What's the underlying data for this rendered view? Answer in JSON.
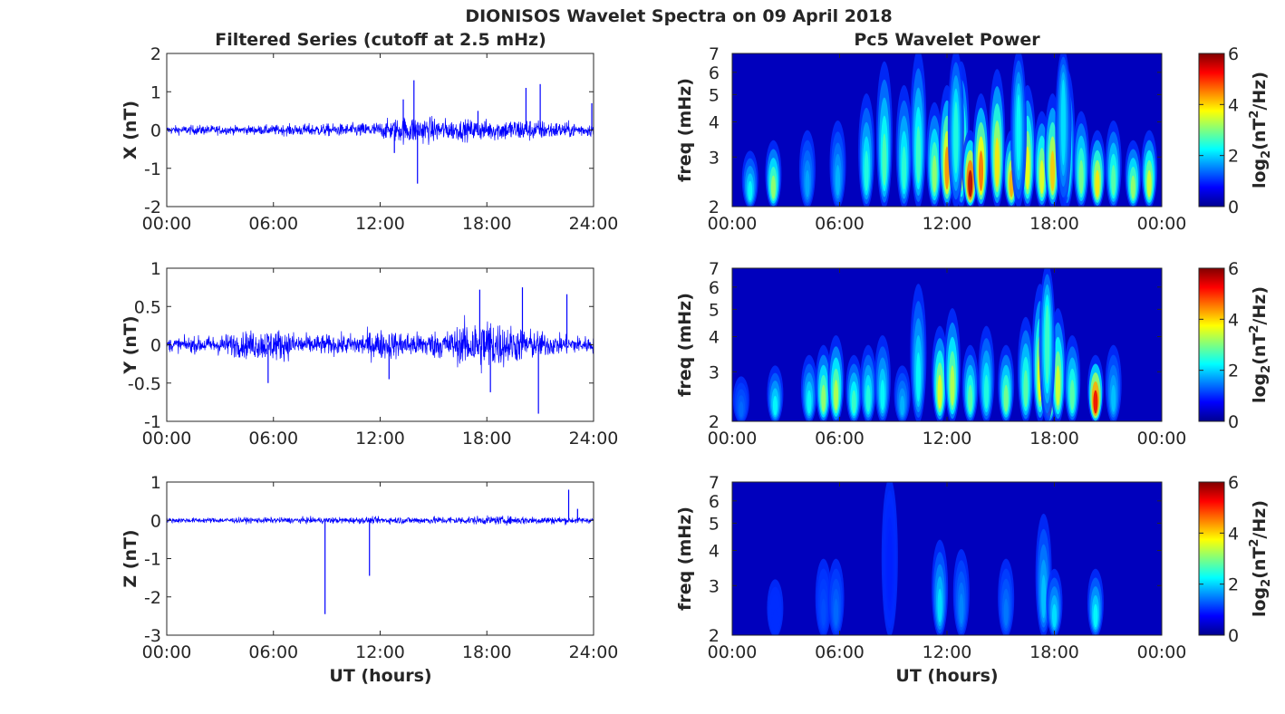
{
  "figure": {
    "title": "DIONISOS Wavelet Spectra on 09 April 2018",
    "left_title": "Filtered Series (cutoff at 2.5 mHz)",
    "right_title": "Pc5 Wavelet Power",
    "xlabel": "UT (hours)"
  },
  "chart_data": [
    {
      "type": "line",
      "component": "X",
      "ylabel": "X (nT)",
      "xlim": [
        0,
        24
      ],
      "ylim": [
        -2,
        2
      ],
      "xticks": [
        "00:00",
        "06:00",
        "12:00",
        "18:00",
        "24:00"
      ],
      "yticks": [
        "2",
        "1",
        "0",
        "-1",
        "-2"
      ],
      "yticks_values": [
        2,
        1,
        0,
        -1,
        -2
      ],
      "color": "#0000ff",
      "noise_envelope": [
        {
          "x": 0,
          "amp": 0.1
        },
        {
          "x": 2,
          "amp": 0.12
        },
        {
          "x": 4,
          "amp": 0.1
        },
        {
          "x": 6,
          "amp": 0.12
        },
        {
          "x": 8,
          "amp": 0.15
        },
        {
          "x": 10,
          "amp": 0.15
        },
        {
          "x": 12,
          "amp": 0.2
        },
        {
          "x": 13,
          "amp": 0.3
        },
        {
          "x": 14,
          "amp": 0.35
        },
        {
          "x": 16,
          "amp": 0.25
        },
        {
          "x": 18,
          "amp": 0.25
        },
        {
          "x": 20,
          "amp": 0.28
        },
        {
          "x": 22,
          "amp": 0.2
        },
        {
          "x": 24,
          "amp": 0.15
        }
      ],
      "spikes": [
        {
          "x": 13.9,
          "y": 1.3
        },
        {
          "x": 14.1,
          "y": -1.4
        },
        {
          "x": 13.3,
          "y": 0.8
        },
        {
          "x": 20.2,
          "y": 1.1
        },
        {
          "x": 21.0,
          "y": 1.2
        },
        {
          "x": 12.8,
          "y": -0.6
        },
        {
          "x": 17.5,
          "y": 0.5
        },
        {
          "x": 23.9,
          "y": 0.7
        }
      ]
    },
    {
      "type": "line",
      "component": "Y",
      "ylabel": "Y (nT)",
      "xlim": [
        0,
        24
      ],
      "ylim": [
        -1,
        1
      ],
      "xticks": [
        "00:00",
        "06:00",
        "12:00",
        "18:00",
        "24:00"
      ],
      "yticks": [
        "1",
        "0.5",
        "0",
        "-0.5",
        "-1"
      ],
      "yticks_values": [
        1,
        0.5,
        0,
        -0.5,
        -1
      ],
      "color": "#0000ff",
      "noise_envelope": [
        {
          "x": 0,
          "amp": 0.08
        },
        {
          "x": 2,
          "amp": 0.1
        },
        {
          "x": 4,
          "amp": 0.15
        },
        {
          "x": 6,
          "amp": 0.2
        },
        {
          "x": 8,
          "amp": 0.12
        },
        {
          "x": 10,
          "amp": 0.12
        },
        {
          "x": 12,
          "amp": 0.18
        },
        {
          "x": 14,
          "amp": 0.15
        },
        {
          "x": 16,
          "amp": 0.18
        },
        {
          "x": 17,
          "amp": 0.3
        },
        {
          "x": 18,
          "amp": 0.35
        },
        {
          "x": 19,
          "amp": 0.25
        },
        {
          "x": 20,
          "amp": 0.2
        },
        {
          "x": 22,
          "amp": 0.12
        },
        {
          "x": 24,
          "amp": 0.1
        }
      ],
      "spikes": [
        {
          "x": 17.6,
          "y": 0.72
        },
        {
          "x": 20.0,
          "y": 0.75
        },
        {
          "x": 20.9,
          "y": -0.9
        },
        {
          "x": 22.5,
          "y": 0.66
        },
        {
          "x": 18.2,
          "y": -0.62
        },
        {
          "x": 5.7,
          "y": -0.5
        },
        {
          "x": 12.5,
          "y": -0.45
        }
      ]
    },
    {
      "type": "line",
      "component": "Z",
      "ylabel": "Z (nT)",
      "xlim": [
        0,
        24
      ],
      "ylim": [
        -3,
        1
      ],
      "xticks": [
        "00:00",
        "06:00",
        "12:00",
        "18:00",
        "24:00"
      ],
      "yticks": [
        "1",
        "0",
        "-1",
        "-2",
        "-3"
      ],
      "yticks_values": [
        1,
        0,
        -1,
        -2,
        -3
      ],
      "color": "#0000ff",
      "noise_envelope": [
        {
          "x": 0,
          "amp": 0.06
        },
        {
          "x": 6,
          "amp": 0.07
        },
        {
          "x": 12,
          "amp": 0.08
        },
        {
          "x": 18,
          "amp": 0.1
        },
        {
          "x": 21,
          "amp": 0.1
        },
        {
          "x": 24,
          "amp": 0.07
        }
      ],
      "spikes": [
        {
          "x": 8.9,
          "y": -2.45
        },
        {
          "x": 11.4,
          "y": -1.45
        },
        {
          "x": 22.6,
          "y": 0.8
        },
        {
          "x": 23.1,
          "y": 0.3
        }
      ]
    },
    {
      "type": "heatmap",
      "component": "X",
      "ylabel": "freq (mHz)",
      "xlim": [
        0,
        24
      ],
      "ylim": [
        2,
        7
      ],
      "yscale": "log",
      "xticks": [
        "00:00",
        "06:00",
        "12:00",
        "18:00",
        "00:00"
      ],
      "yticks": [
        "7",
        "6",
        "5",
        "4",
        "3",
        "2"
      ],
      "yticks_values": [
        7,
        6,
        5,
        4,
        3,
        2
      ],
      "colormap": "jet",
      "colorbar": {
        "label": "log2(nT2/Hz)",
        "range": [
          0,
          6
        ],
        "ticks": [
          "6",
          "4",
          "2",
          "0"
        ]
      },
      "blobs": [
        {
          "t": 1.0,
          "f": 2.4,
          "p": 2.0
        },
        {
          "t": 2.3,
          "f": 2.5,
          "p": 3.0
        },
        {
          "t": 4.2,
          "f": 2.6,
          "p": 1.4
        },
        {
          "t": 5.9,
          "f": 2.7,
          "p": 1.5
        },
        {
          "t": 7.5,
          "f": 3.0,
          "p": 2.2
        },
        {
          "t": 8.5,
          "f": 3.4,
          "p": 2.5
        },
        {
          "t": 9.6,
          "f": 3.1,
          "p": 2.3
        },
        {
          "t": 10.4,
          "f": 3.6,
          "p": 2.4
        },
        {
          "t": 11.3,
          "f": 2.9,
          "p": 3.0
        },
        {
          "t": 12.0,
          "f": 3.1,
          "p": 4.4
        },
        {
          "t": 12.8,
          "f": 3.4,
          "p": 3.5
        },
        {
          "t": 13.3,
          "f": 2.6,
          "p": 5.8
        },
        {
          "t": 13.9,
          "f": 3.0,
          "p": 4.6
        },
        {
          "t": 14.8,
          "f": 3.3,
          "p": 3.8
        },
        {
          "t": 15.6,
          "f": 2.6,
          "p": 4.2
        },
        {
          "t": 16.5,
          "f": 3.1,
          "p": 3.6
        },
        {
          "t": 17.3,
          "f": 2.8,
          "p": 3.5
        },
        {
          "t": 17.9,
          "f": 3.0,
          "p": 4.0
        },
        {
          "t": 18.7,
          "f": 3.3,
          "p": 3.2
        },
        {
          "t": 19.5,
          "f": 2.8,
          "p": 2.8
        },
        {
          "t": 20.4,
          "f": 2.6,
          "p": 3.8
        },
        {
          "t": 21.3,
          "f": 2.7,
          "p": 2.6
        },
        {
          "t": 22.4,
          "f": 2.5,
          "p": 3.0
        },
        {
          "t": 23.3,
          "f": 2.6,
          "p": 3.4
        },
        {
          "t": 12.5,
          "f": 4.5,
          "p": 2.2
        },
        {
          "t": 16.0,
          "f": 4.8,
          "p": 2.0
        },
        {
          "t": 18.5,
          "f": 5.5,
          "p": 1.8
        }
      ]
    },
    {
      "type": "heatmap",
      "component": "Y",
      "ylabel": "freq (mHz)",
      "xlim": [
        0,
        24
      ],
      "ylim": [
        2,
        7
      ],
      "yscale": "log",
      "xticks": [
        "00:00",
        "06:00",
        "12:00",
        "18:00",
        "00:00"
      ],
      "yticks": [
        "7",
        "6",
        "5",
        "4",
        "3",
        "2"
      ],
      "yticks_values": [
        7,
        6,
        5,
        4,
        3,
        2
      ],
      "colormap": "jet",
      "colorbar": {
        "label": "log2(nT2/Hz)",
        "range": [
          0,
          6
        ],
        "ticks": [
          "6",
          "4",
          "2",
          "0"
        ]
      },
      "blobs": [
        {
          "t": 0.5,
          "f": 2.3,
          "p": 1.0
        },
        {
          "t": 2.4,
          "f": 2.4,
          "p": 2.0
        },
        {
          "t": 4.3,
          "f": 2.5,
          "p": 2.0
        },
        {
          "t": 5.1,
          "f": 2.6,
          "p": 3.0
        },
        {
          "t": 5.8,
          "f": 2.7,
          "p": 3.2
        },
        {
          "t": 6.8,
          "f": 2.5,
          "p": 2.4
        },
        {
          "t": 7.6,
          "f": 2.6,
          "p": 2.2
        },
        {
          "t": 8.4,
          "f": 2.7,
          "p": 2.0
        },
        {
          "t": 9.5,
          "f": 2.4,
          "p": 1.5
        },
        {
          "t": 10.4,
          "f": 3.3,
          "p": 2.0
        },
        {
          "t": 11.6,
          "f": 2.8,
          "p": 3.5
        },
        {
          "t": 12.3,
          "f": 3.0,
          "p": 3.2
        },
        {
          "t": 13.3,
          "f": 2.6,
          "p": 2.6
        },
        {
          "t": 14.2,
          "f": 2.8,
          "p": 2.2
        },
        {
          "t": 15.3,
          "f": 2.6,
          "p": 2.8
        },
        {
          "t": 16.4,
          "f": 2.9,
          "p": 2.6
        },
        {
          "t": 17.2,
          "f": 3.3,
          "p": 3.6
        },
        {
          "t": 17.7,
          "f": 2.5,
          "p": 4.2
        },
        {
          "t": 18.2,
          "f": 3.0,
          "p": 3.4
        },
        {
          "t": 19.0,
          "f": 2.7,
          "p": 2.6
        },
        {
          "t": 20.3,
          "f": 2.5,
          "p": 5.4
        },
        {
          "t": 21.3,
          "f": 2.6,
          "p": 1.6
        },
        {
          "t": 17.6,
          "f": 5.0,
          "p": 2.4
        }
      ]
    },
    {
      "type": "heatmap",
      "component": "Z",
      "ylabel": "freq (mHz)",
      "xlim": [
        0,
        24
      ],
      "ylim": [
        2,
        7
      ],
      "yscale": "log",
      "xticks": [
        "00:00",
        "06:00",
        "12:00",
        "18:00",
        "00:00"
      ],
      "yticks": [
        "7",
        "6",
        "5",
        "4",
        "3",
        "2"
      ],
      "yticks_values": [
        7,
        6,
        5,
        4,
        3,
        2
      ],
      "colormap": "jet",
      "colorbar": {
        "label": "log2(nT2/Hz)",
        "range": [
          0,
          6
        ],
        "ticks": [
          "6",
          "4",
          "2",
          "0"
        ]
      },
      "blobs": [
        {
          "t": 2.4,
          "f": 2.4,
          "p": 0.6
        },
        {
          "t": 5.1,
          "f": 2.6,
          "p": 0.8
        },
        {
          "t": 5.8,
          "f": 2.6,
          "p": 1.0
        },
        {
          "t": 11.6,
          "f": 2.8,
          "p": 1.8
        },
        {
          "t": 12.8,
          "f": 2.7,
          "p": 1.2
        },
        {
          "t": 15.3,
          "f": 2.6,
          "p": 1.1
        },
        {
          "t": 17.4,
          "f": 3.1,
          "p": 1.6
        },
        {
          "t": 18.0,
          "f": 2.5,
          "p": 1.8
        },
        {
          "t": 20.3,
          "f": 2.5,
          "p": 2.0
        },
        {
          "t": 8.8,
          "f": 4.5,
          "p": 0.5
        }
      ]
    }
  ]
}
